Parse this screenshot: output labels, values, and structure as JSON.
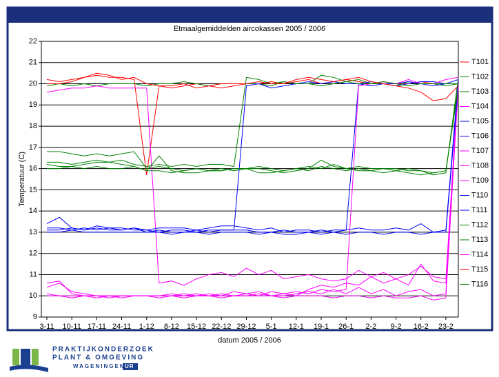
{
  "chart_data": {
    "type": "line",
    "title": "Etmaalgemiddelden aircokassen 2005 / 2006",
    "y_label": "Temperatuur (C)",
    "x_label": "datum 2005 / 2006",
    "categories": [
      "3-11",
      null,
      "10-11",
      null,
      "17-11",
      null,
      "24-11",
      null,
      "1-12",
      null,
      "8-12",
      null,
      "15-12",
      null,
      "22-12",
      null,
      "29-12",
      null,
      "5-1",
      null,
      "12-1",
      null,
      "19-1",
      null,
      "26-1",
      null,
      "2-2",
      null,
      "9-2",
      null,
      "16-2",
      null,
      "23-2",
      null
    ],
    "ylim": [
      9,
      22
    ],
    "yticks": [
      9,
      10,
      11,
      12,
      13,
      14,
      15,
      16,
      17,
      18,
      19,
      20,
      21,
      22
    ],
    "grid": true,
    "legend": "right",
    "series": [
      {
        "name": "T101",
        "color": "#ff0000",
        "values": [
          20.2,
          20.1,
          20.2,
          20.3,
          20.4,
          20.3,
          20.3,
          20.2,
          15.7,
          19.9,
          19.8,
          19.9,
          20.0,
          19.9,
          19.8,
          19.9,
          20.0,
          20.0,
          20.1,
          20.0,
          20.1,
          20.2,
          20.0,
          20.1,
          20.2,
          20.1,
          20.0,
          20.1,
          20.0,
          20.0,
          20.1,
          20.0,
          20.0,
          20.0
        ]
      },
      {
        "name": "T102",
        "color": "#008000",
        "values": [
          19.9,
          20.0,
          19.9,
          20.0,
          19.9,
          20.0,
          20.0,
          20.0,
          19.9,
          20.0,
          20.0,
          20.1,
          20.0,
          19.9,
          20.0,
          20.0,
          20.0,
          20.0,
          19.9,
          20.1,
          20.0,
          20.0,
          20.4,
          20.3,
          20.1,
          20.2,
          20.0,
          20.0,
          19.9,
          20.1,
          20.0,
          20.0,
          19.9,
          20.0
        ]
      },
      {
        "name": "T103",
        "color": "#008000",
        "values": [
          16.8,
          16.8,
          16.7,
          16.6,
          16.7,
          16.6,
          16.7,
          16.8,
          16.0,
          16.1,
          16.0,
          15.9,
          16.0,
          15.9,
          16.0,
          15.9,
          16.0,
          16.1,
          16.0,
          15.9,
          16.0,
          16.1,
          16.0,
          16.2,
          16.0,
          16.1,
          16.0,
          16.0,
          15.9,
          16.0,
          15.9,
          15.8,
          15.9,
          20.0
        ]
      },
      {
        "name": "T104",
        "color": "#ff00ff",
        "values": [
          19.6,
          19.7,
          19.8,
          19.8,
          19.9,
          19.8,
          19.8,
          19.8,
          19.8,
          10.6,
          10.7,
          10.5,
          10.8,
          11.0,
          11.1,
          10.9,
          11.3,
          11.0,
          11.2,
          10.8,
          10.9,
          11.0,
          10.8,
          10.7,
          10.8,
          11.2,
          10.9,
          11.1,
          10.8,
          11.0,
          11.4,
          10.9,
          10.8,
          20.0
        ]
      },
      {
        "name": "T105",
        "color": "#0000ff",
        "values": [
          13.2,
          13.2,
          13.1,
          13.2,
          13.1,
          13.2,
          13.2,
          13.1,
          13.1,
          13.0,
          13.1,
          13.1,
          13.0,
          13.1,
          13.1,
          13.1,
          19.9,
          20.0,
          19.8,
          19.9,
          20.0,
          20.1,
          20.0,
          20.1,
          20.0,
          20.0,
          19.9,
          20.0,
          20.0,
          20.1,
          20.0,
          19.9,
          20.0,
          20.0
        ]
      },
      {
        "name": "T106",
        "color": "#0000ff",
        "values": [
          13.1,
          13.1,
          13.2,
          13.1,
          13.2,
          13.1,
          13.1,
          13.2,
          13.0,
          13.1,
          13.0,
          13.0,
          13.1,
          13.0,
          13.1,
          13.1,
          13.1,
          13.0,
          13.0,
          13.1,
          13.0,
          13.0,
          13.1,
          13.0,
          13.1,
          20.0,
          20.1,
          20.0,
          19.9,
          20.0,
          20.1,
          20.1,
          20.0,
          20.2
        ]
      },
      {
        "name": "T107",
        "color": "#ff00ff",
        "values": [
          10.0,
          10.0,
          9.9,
          10.0,
          10.0,
          9.9,
          10.0,
          10.0,
          10.0,
          10.0,
          10.1,
          10.0,
          10.0,
          10.1,
          10.0,
          10.2,
          10.1,
          10.2,
          10.0,
          10.1,
          10.2,
          10.1,
          10.3,
          10.2,
          10.3,
          19.9,
          20.0,
          20.1,
          20.0,
          20.2,
          20.0,
          20.0,
          20.2,
          20.3
        ]
      },
      {
        "name": "T108",
        "color": "#ff00ff",
        "values": [
          10.6,
          10.7,
          10.1,
          10.0,
          10.0,
          10.0,
          9.9,
          10.0,
          10.0,
          10.0,
          10.0,
          10.1,
          10.0,
          10.0,
          10.1,
          10.0,
          10.1,
          10.0,
          10.2,
          10.1,
          10.0,
          10.3,
          10.5,
          10.4,
          10.6,
          10.5,
          10.9,
          10.6,
          10.8,
          10.5,
          11.5,
          10.7,
          10.6,
          20.3
        ]
      },
      {
        "name": "T109",
        "color": "#ff00ff",
        "values": [
          10.4,
          10.6,
          10.2,
          10.1,
          10.0,
          10.0,
          10.0,
          10.0,
          10.0,
          10.0,
          10.0,
          10.0,
          10.1,
          10.0,
          10.0,
          10.0,
          10.0,
          10.1,
          10.0,
          10.0,
          10.1,
          10.2,
          10.1,
          10.3,
          10.1,
          10.4,
          10.1,
          10.3,
          10.0,
          10.2,
          10.3,
          10.0,
          10.1,
          20.1
        ]
      },
      {
        "name": "T110",
        "color": "#0000ff",
        "values": [
          13.4,
          13.7,
          13.2,
          13.1,
          13.3,
          13.2,
          13.1,
          13.2,
          13.1,
          13.2,
          13.2,
          13.2,
          13.1,
          13.2,
          13.3,
          13.3,
          13.2,
          13.1,
          13.2,
          13.0,
          13.1,
          13.1,
          13.0,
          13.1,
          13.1,
          13.2,
          13.1,
          13.1,
          13.2,
          13.1,
          13.4,
          13.0,
          13.1,
          20.2
        ]
      },
      {
        "name": "T111",
        "color": "#0000ff",
        "values": [
          13.0,
          13.0,
          13.1,
          13.0,
          13.0,
          13.0,
          13.0,
          13.0,
          13.0,
          13.0,
          12.9,
          13.0,
          13.0,
          12.9,
          13.0,
          13.0,
          13.0,
          12.9,
          13.0,
          12.9,
          12.9,
          13.0,
          12.9,
          13.0,
          12.9,
          13.0,
          13.0,
          12.9,
          13.0,
          13.0,
          12.9,
          13.0,
          13.0,
          19.9
        ]
      },
      {
        "name": "T112",
        "color": "#008000",
        "values": [
          16.3,
          16.3,
          16.2,
          16.3,
          16.4,
          16.3,
          16.4,
          16.2,
          16.1,
          16.2,
          16.1,
          16.2,
          16.1,
          16.2,
          16.2,
          16.1,
          20.3,
          20.2,
          20.0,
          20.1,
          20.0,
          20.0,
          19.9,
          20.0,
          20.1,
          20.0,
          20.0,
          20.1,
          20.0,
          19.9,
          20.0,
          20.0,
          20.0,
          20.0
        ]
      },
      {
        "name": "T113",
        "color": "#008000",
        "values": [
          16.2,
          16.1,
          16.1,
          16.2,
          16.3,
          16.3,
          16.2,
          16.1,
          15.9,
          16.6,
          15.9,
          15.8,
          15.8,
          15.9,
          15.9,
          16.0,
          16.0,
          16.0,
          15.9,
          15.8,
          15.9,
          16.0,
          16.4,
          16.1,
          16.0,
          15.9,
          15.9,
          15.8,
          15.9,
          15.8,
          15.7,
          15.8,
          15.9,
          19.8
        ]
      },
      {
        "name": "T114",
        "color": "#ff00ff",
        "values": [
          10.1,
          10.0,
          10.0,
          10.0,
          9.9,
          10.0,
          10.0,
          10.0,
          10.0,
          9.9,
          10.0,
          9.9,
          10.0,
          10.0,
          9.9,
          10.0,
          10.0,
          10.0,
          10.0,
          9.9,
          10.0,
          10.0,
          10.0,
          9.9,
          10.0,
          10.0,
          9.9,
          10.0,
          9.9,
          9.9,
          10.0,
          9.8,
          9.9,
          19.9
        ]
      },
      {
        "name": "T115",
        "color": "#ff0000",
        "values": [
          20.0,
          20.0,
          20.1,
          20.3,
          20.5,
          20.4,
          20.2,
          20.3,
          20.0,
          19.9,
          19.9,
          20.0,
          19.8,
          19.9,
          20.0,
          20.0,
          20.0,
          20.1,
          20.0,
          20.0,
          20.2,
          20.3,
          20.2,
          20.1,
          20.2,
          20.3,
          20.1,
          20.0,
          19.9,
          19.8,
          19.6,
          19.2,
          19.3,
          19.9
        ]
      },
      {
        "name": "T116",
        "color": "#008000",
        "values": [
          16.0,
          16.0,
          16.1,
          16.0,
          16.1,
          16.0,
          16.0,
          16.1,
          15.9,
          15.9,
          15.8,
          15.9,
          16.0,
          15.9,
          15.9,
          16.0,
          16.0,
          15.8,
          15.8,
          15.9,
          16.0,
          15.9,
          16.1,
          16.0,
          15.9,
          16.0,
          15.9,
          16.0,
          16.0,
          15.9,
          15.9,
          15.7,
          15.8,
          20.3
        ]
      }
    ]
  },
  "logo": {
    "line1": "PRAKTIJKONDERZOEK",
    "line2": "PLANT & OMGEVING",
    "line3": "WAGENINGEN",
    "line3b": "UR"
  }
}
